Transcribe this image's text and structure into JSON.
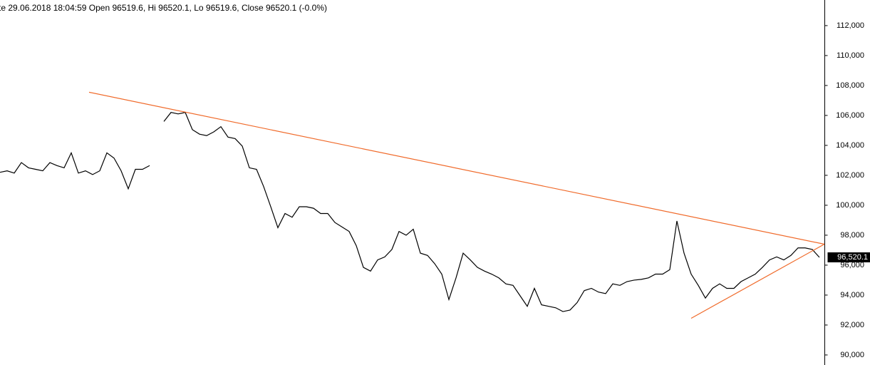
{
  "chart_data": {
    "type": "line",
    "title": "te 29.06.2018 18:04:59 Open 96519.6, Hi 96520.1, Lo 96519.6, Close 96520.1 (-0.0%)",
    "series": [
      {
        "color": "#000000",
        "values": [
          102200,
          102300,
          102150,
          102850,
          102500,
          102400,
          102300,
          102850,
          102650,
          102500,
          103500,
          102150,
          102300,
          102050,
          102300,
          103500,
          103150,
          102300,
          101100,
          102400,
          102400,
          102650,
          null,
          105600,
          106200,
          106100,
          106200,
          105050,
          104750,
          104650,
          104900,
          105250,
          104550,
          104450,
          103950,
          102500,
          102400,
          101250,
          99900,
          98500,
          99450,
          99200,
          99900,
          99900,
          99800,
          99450,
          99450,
          98850,
          98550,
          98250,
          97300,
          95850,
          95600,
          96350,
          96550,
          97050,
          98250,
          98000,
          98400,
          96800,
          96650,
          96100,
          95400,
          93700,
          95150,
          96800,
          96350,
          95850,
          95600,
          95400,
          95150,
          94750,
          94650,
          93950,
          93250,
          94450,
          93350,
          93250,
          93150,
          92900,
          93000,
          93500,
          94300,
          94450,
          94200,
          94100,
          94750,
          94650,
          94900,
          95000,
          95050,
          95150,
          95400,
          95400,
          95700,
          98950,
          96800,
          95400,
          94650,
          93800,
          94450,
          94750,
          94450,
          94450,
          94900,
          95150,
          95400,
          95850,
          96350,
          96550,
          96350,
          96650,
          97150,
          97150,
          97050,
          96520.1
        ]
      }
    ],
    "trendlines": [
      {
        "color": "#f06a2a",
        "x": [
          12.5,
          115.7
        ],
        "y": [
          107550,
          97400
        ]
      },
      {
        "color": "#f06a2a",
        "x": [
          97,
          115.7
        ],
        "y": [
          92450,
          97400
        ]
      }
    ],
    "last_price": {
      "value": 96520.1,
      "label": "96,520.1"
    },
    "ylim": [
      89330,
      113710
    ],
    "yticks": [
      {
        "value": 90000,
        "label": "90,000"
      },
      {
        "value": 92000,
        "label": "92,000"
      },
      {
        "value": 94000,
        "label": "94,000"
      },
      {
        "value": 96000,
        "label": "96,000"
      },
      {
        "value": 98000,
        "label": "98,000"
      },
      {
        "value": 100000,
        "label": "100,000"
      },
      {
        "value": 102000,
        "label": "102,000"
      },
      {
        "value": 104000,
        "label": "104,000"
      },
      {
        "value": 106000,
        "label": "106,000"
      },
      {
        "value": 108000,
        "label": "108,000"
      },
      {
        "value": 110000,
        "label": "110,000"
      },
      {
        "value": 112000,
        "label": "112,000"
      }
    ]
  }
}
